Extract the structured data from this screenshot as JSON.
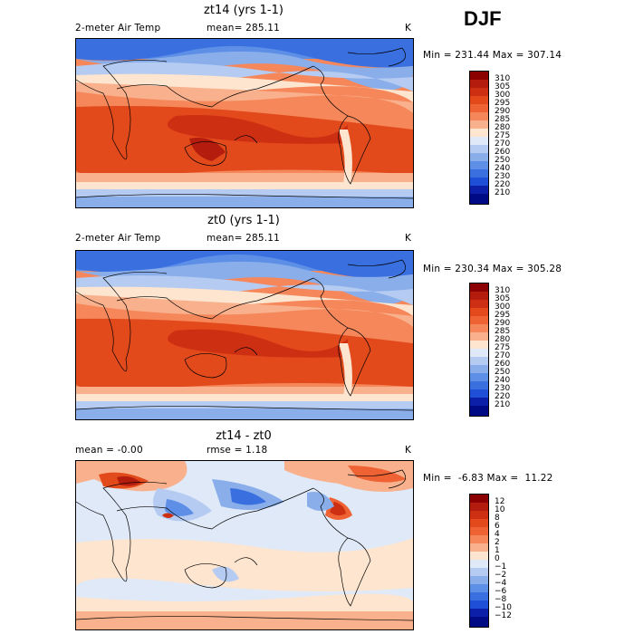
{
  "season": "DJF",
  "panels": [
    {
      "title": "zt14 (yrs 1-1)",
      "left_label": "2-meter Air Temp",
      "mid_label": "mean= 285.11",
      "unit": "K",
      "minmax": "Min = 231.44 Max = 307.14",
      "colorbar": [
        "310",
        "305",
        "300",
        "295",
        "290",
        "285",
        "280",
        "275",
        "270",
        "260",
        "250",
        "240",
        "230",
        "220",
        "210"
      ],
      "colors": [
        "#8b0000",
        "#b41c0d",
        "#cc2f12",
        "#e24a1c",
        "#ee6233",
        "#f5875a",
        "#f9b08c",
        "#fde5d0",
        "#dfe9f8",
        "#b5cbf1",
        "#8aaeea",
        "#5e8fe6",
        "#3a6fe0",
        "#1f4fd6",
        "#0b1fa8",
        "#000a85"
      ]
    },
    {
      "title": "zt0 (yrs 1-1)",
      "left_label": "2-meter Air Temp",
      "mid_label": "mean= 285.11",
      "unit": "K",
      "minmax": "Min = 230.34 Max = 305.28",
      "colorbar": [
        "310",
        "305",
        "300",
        "295",
        "290",
        "285",
        "280",
        "275",
        "270",
        "260",
        "250",
        "240",
        "230",
        "220",
        "210"
      ],
      "colors": [
        "#8b0000",
        "#b41c0d",
        "#cc2f12",
        "#e24a1c",
        "#ee6233",
        "#f5875a",
        "#f9b08c",
        "#fde5d0",
        "#dfe9f8",
        "#b5cbf1",
        "#8aaeea",
        "#5e8fe6",
        "#3a6fe0",
        "#1f4fd6",
        "#0b1fa8",
        "#000a85"
      ]
    },
    {
      "title": "zt14 - zt0",
      "left_label": "mean =   -0.00",
      "mid_label": "rmse =    1.18",
      "unit": "K",
      "minmax": "Min =  -6.83 Max =  11.22",
      "colorbar": [
        "12",
        "10",
        "8",
        "6",
        "4",
        "2",
        "1",
        "0",
        "−1",
        "−2",
        "−4",
        "−6",
        "−8",
        "−10",
        "−12"
      ],
      "colors": [
        "#8b0000",
        "#b41c0d",
        "#cc2f12",
        "#e24a1c",
        "#ee6233",
        "#f5875a",
        "#f9b08c",
        "#fde5d0",
        "#dfe9f8",
        "#b5cbf1",
        "#8aaeea",
        "#5e8fe6",
        "#3a6fe0",
        "#1f4fd6",
        "#0b1fa8",
        "#000a85"
      ]
    }
  ]
}
